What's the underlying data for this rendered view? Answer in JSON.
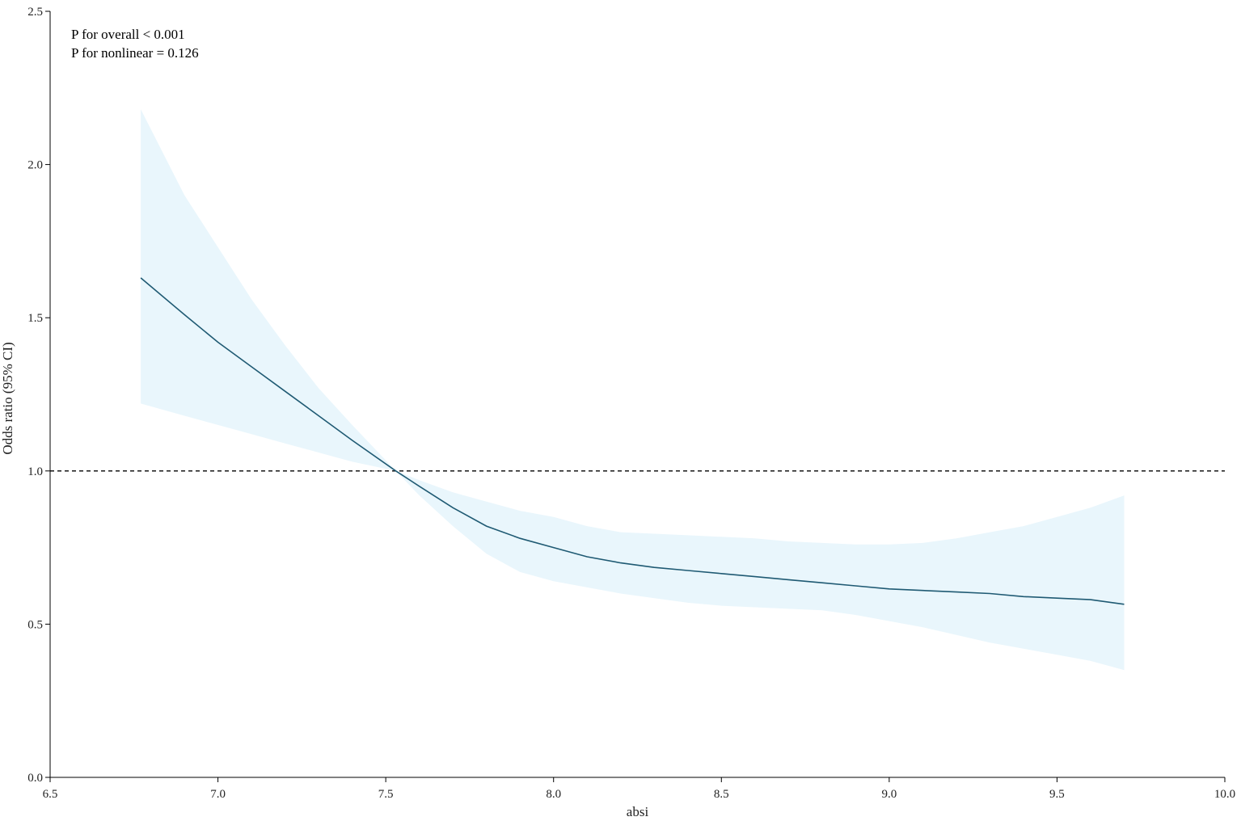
{
  "chart_data": {
    "type": "line",
    "title": "",
    "xlabel": "absi",
    "ylabel": "Odds ratio (95% CI)",
    "xlim": [
      6.5,
      10.0
    ],
    "ylim": [
      0.0,
      2.5
    ],
    "x_ticks": [
      "6.5",
      "7.0",
      "7.5",
      "8.0",
      "8.5",
      "9.0",
      "9.5",
      "10.0"
    ],
    "y_ticks": [
      "0.0",
      "0.5",
      "1.0",
      "1.5",
      "2.0",
      "2.5"
    ],
    "reference_line": {
      "y": 1.0,
      "style": "dashed"
    },
    "annotations": [
      "P for overall < 0.001",
      "P for nonlinear = 0.126"
    ],
    "grid": false,
    "colors": {
      "line": "#1f5a73",
      "band": "#e9f6fc",
      "reference": "#000000"
    },
    "series": [
      {
        "x": [
          6.77,
          6.9,
          7.0,
          7.1,
          7.2,
          7.3,
          7.4,
          7.53,
          7.6,
          7.7,
          7.8,
          7.9,
          8.0,
          8.1,
          8.2,
          8.3,
          8.4,
          8.5,
          8.6,
          8.7,
          8.8,
          8.9,
          9.0,
          9.1,
          9.2,
          9.3,
          9.4,
          9.5,
          9.6,
          9.7
        ],
        "y": [
          1.63,
          1.51,
          1.42,
          1.34,
          1.26,
          1.18,
          1.1,
          1.0,
          0.95,
          0.88,
          0.82,
          0.78,
          0.75,
          0.72,
          0.7,
          0.685,
          0.675,
          0.665,
          0.655,
          0.645,
          0.635,
          0.625,
          0.615,
          0.61,
          0.605,
          0.6,
          0.59,
          0.585,
          0.58,
          0.565
        ],
        "lower": [
          1.22,
          1.18,
          1.15,
          1.12,
          1.09,
          1.06,
          1.03,
          1.0,
          0.92,
          0.82,
          0.73,
          0.67,
          0.64,
          0.62,
          0.6,
          0.585,
          0.57,
          0.56,
          0.555,
          0.55,
          0.545,
          0.53,
          0.51,
          0.49,
          0.465,
          0.44,
          0.42,
          0.4,
          0.38,
          0.35
        ],
        "upper": [
          2.18,
          1.9,
          1.73,
          1.56,
          1.41,
          1.27,
          1.15,
          1.0,
          0.97,
          0.93,
          0.9,
          0.87,
          0.85,
          0.82,
          0.8,
          0.795,
          0.79,
          0.785,
          0.78,
          0.77,
          0.765,
          0.76,
          0.76,
          0.765,
          0.78,
          0.8,
          0.82,
          0.85,
          0.88,
          0.92
        ]
      }
    ]
  }
}
